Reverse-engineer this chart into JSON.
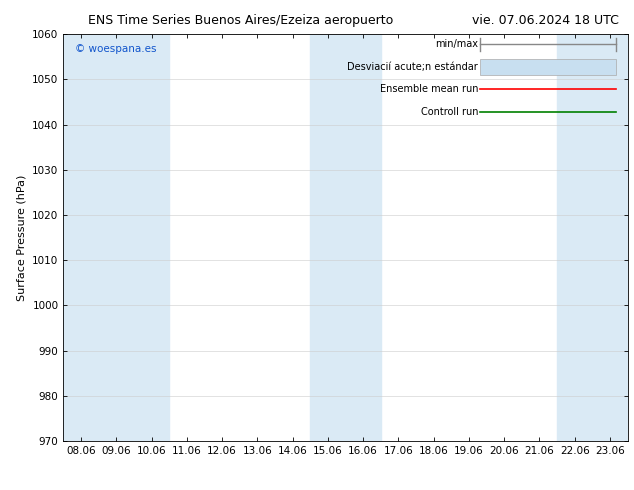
{
  "title_left": "ENS Time Series Buenos Aires/Ezeiza aeropuerto",
  "title_right": "vie. 07.06.2024 18 UTC",
  "ylabel": "Surface Pressure (hPa)",
  "ylim": [
    970,
    1060
  ],
  "yticks": [
    970,
    980,
    990,
    1000,
    1010,
    1020,
    1030,
    1040,
    1050,
    1060
  ],
  "x_labels": [
    "08.06",
    "09.06",
    "10.06",
    "11.06",
    "12.06",
    "13.06",
    "14.06",
    "15.06",
    "16.06",
    "17.06",
    "18.06",
    "19.06",
    "20.06",
    "21.06",
    "22.06",
    "23.06"
  ],
  "shaded_bands": [
    0,
    1,
    2,
    7,
    8,
    14,
    15
  ],
  "band_color": "#daeaf5",
  "bg_color": "#ffffff",
  "watermark": "© woespana.es",
  "title_fontsize": 9,
  "axis_label_fontsize": 8,
  "tick_fontsize": 7.5,
  "legend_fontsize": 7,
  "watermark_color": "#1155cc"
}
